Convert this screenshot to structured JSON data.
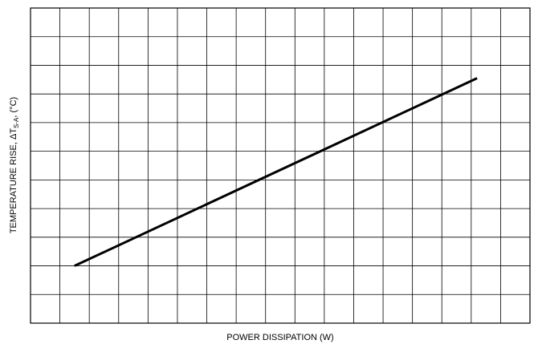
{
  "chart_data": {
    "type": "line",
    "x_label": "POWER DISSIPATION (W)",
    "y_label": [
      "TEMPERATURE RISE, ΔT",
      "S-A",
      ", (°C)"
    ],
    "x": [
      1.5,
      15.2
    ],
    "series": [
      {
        "color": "#000000",
        "values": [
          2.0,
          8.55
        ]
      }
    ],
    "xlim": [
      0,
      17
    ],
    "ylim": [
      0,
      11
    ],
    "xticks": [
      0,
      1,
      2,
      3,
      4,
      5,
      6,
      7,
      8,
      9,
      10,
      11,
      12,
      13,
      14,
      15,
      16,
      17
    ],
    "yticks": [
      0,
      1,
      2,
      3,
      4,
      5,
      6,
      7,
      8,
      9,
      10,
      11
    ],
    "grid": true
  }
}
